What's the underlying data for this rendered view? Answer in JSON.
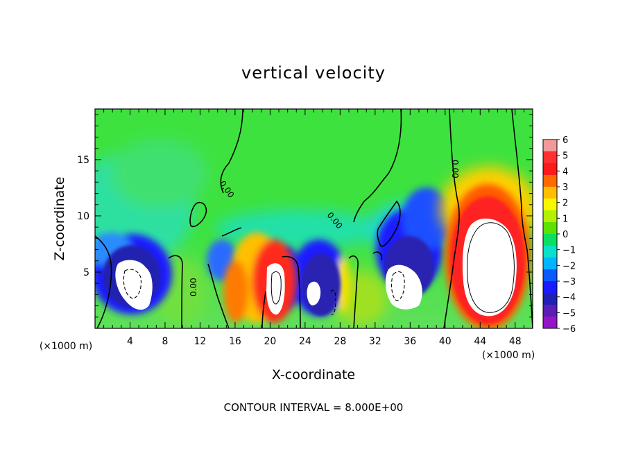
{
  "chart_data": {
    "type": "heatmap",
    "title": "vertical velocity",
    "xlabel": "X-coordinate",
    "ylabel": "Z-coordinate",
    "x_unit": "(×1000 m)",
    "z_unit": "(×1000 m)",
    "footer": "CONTOUR INTERVAL = 8.000E+00",
    "xlim": [
      0,
      50
    ],
    "ylim": [
      0,
      19.5
    ],
    "x_ticks": [
      4,
      8,
      12,
      16,
      20,
      24,
      28,
      32,
      36,
      40,
      44,
      48
    ],
    "y_ticks": [
      5,
      10,
      15
    ],
    "colorbar": {
      "ticks": [
        "6",
        "5",
        "4",
        "3",
        "2",
        "1",
        "0",
        "−1",
        "−2",
        "−3",
        "−4",
        "−5",
        "−6"
      ],
      "range": [
        -6,
        6
      ],
      "colors": [
        "#f29a9a",
        "#ff3030",
        "#ff1a1a",
        "#ff6a00",
        "#ffbf00",
        "#f7f700",
        "#b4f000",
        "#5ee000",
        "#0ae060",
        "#0ae0c8",
        "#00b4ff",
        "#0a5aff",
        "#1a1aff",
        "#2020b4",
        "#5a1eb4",
        "#9614c8"
      ]
    },
    "contour_labels": [
      "0.00",
      "0.00",
      "0.00",
      "0.00"
    ],
    "features": [
      {
        "x": 5.5,
        "z": 4.5,
        "w": -8,
        "kind": "downdraft"
      },
      {
        "x": 20.5,
        "z": 3.8,
        "w": 8,
        "kind": "updraft"
      },
      {
        "x": 26.5,
        "z": 3.0,
        "w": -8,
        "kind": "downdraft"
      },
      {
        "x": 34.8,
        "z": 4.5,
        "w": -8,
        "kind": "downdraft"
      },
      {
        "x": 44.5,
        "z": 6.0,
        "w": 8,
        "kind": "updraft"
      }
    ]
  }
}
